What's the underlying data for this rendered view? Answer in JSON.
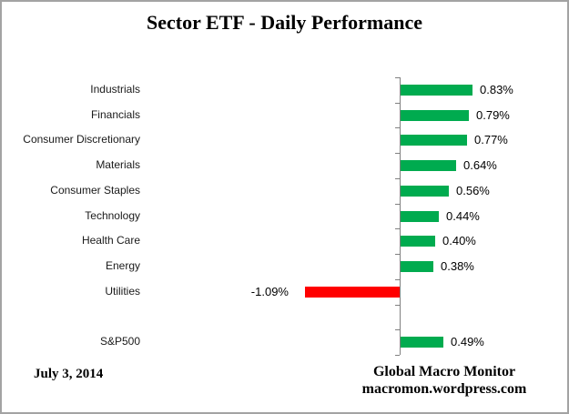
{
  "chart_data": {
    "type": "bar",
    "orientation": "horizontal",
    "title": "Sector ETF - Daily Performance",
    "categories": [
      "Industrials",
      "Financials",
      "Consumer Discretionary",
      "Materials",
      "Consumer Staples",
      "Technology",
      "Health Care",
      "Energy",
      "Utilities",
      "",
      "S&P500"
    ],
    "values": [
      0.83,
      0.79,
      0.77,
      0.64,
      0.56,
      0.44,
      0.4,
      0.38,
      -1.09,
      null,
      0.49
    ],
    "value_labels": [
      "0.83%",
      "0.79%",
      "0.77%",
      "0.64%",
      "0.56%",
      "0.44%",
      "0.40%",
      "0.38%",
      "-1.09%",
      "",
      "0.49%"
    ],
    "xlabel": "",
    "ylabel": "",
    "xlim": [
      -1.2,
      1.0
    ],
    "grid": false,
    "legend": false,
    "axis_ticks": "category-boundaries",
    "colors": {
      "positive_bar": "#00AB4F",
      "negative_bar": "#FF0000",
      "axis": "#808080"
    }
  },
  "footer": {
    "date": "July 3, 2014",
    "attribution_line1": "Global Macro Monitor",
    "attribution_line2": "macromon.wordpress.com"
  }
}
